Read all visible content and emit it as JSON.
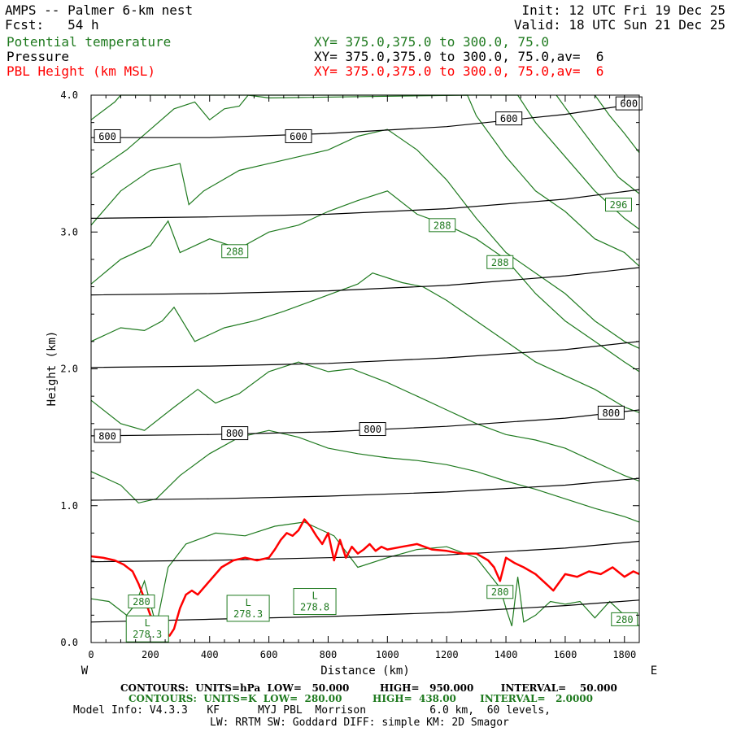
{
  "header": {
    "title": "AMPS -- Palmer 6-km nest",
    "init": "Init: 12 UTC Fri 19 Dec 25",
    "fcst": "Fcst:   54 h",
    "valid": "Valid: 18 UTC Sun 21 Dec 25",
    "fields": [
      {
        "name": "Potential temperature",
        "xy": "XY= 375.0,375.0 to 300.0, 75.0",
        "color": "#1f7a1f"
      },
      {
        "name": "Pressure",
        "xy": "XY= 375.0,375.0 to 300.0, 75.0,av=  6",
        "color": "#000000"
      },
      {
        "name": "PBL Height (km MSL)",
        "xy": "XY= 375.0,375.0 to 300.0, 75.0,av=  6",
        "color": "#ff0000"
      }
    ]
  },
  "chart_data": {
    "type": "line",
    "xlabel": "Distance (km)",
    "ylabel": "Height (km)",
    "xlim": [
      0,
      1850
    ],
    "ylim": [
      0,
      4.0
    ],
    "x_ticks": [
      "0",
      "200",
      "400",
      "600",
      "800",
      "1000",
      "1200",
      "1400",
      "1600",
      "1800"
    ],
    "y_ticks": [
      "0.0",
      "1.0",
      "2.0",
      "3.0",
      "4.0"
    ],
    "x_end_labels": {
      "left": "W",
      "right": "E"
    },
    "pressure_contours": [
      {
        "level": 950,
        "points": [
          [
            0,
            0.15
          ],
          [
            400,
            0.17
          ],
          [
            800,
            0.19
          ],
          [
            1200,
            0.22
          ],
          [
            1600,
            0.27
          ],
          [
            1850,
            0.31
          ]
        ]
      },
      {
        "level": 900,
        "points": [
          [
            0,
            0.59
          ],
          [
            400,
            0.6
          ],
          [
            800,
            0.62
          ],
          [
            1200,
            0.64
          ],
          [
            1600,
            0.69
          ],
          [
            1850,
            0.74
          ]
        ]
      },
      {
        "level": 850,
        "points": [
          [
            0,
            1.04
          ],
          [
            400,
            1.05
          ],
          [
            800,
            1.07
          ],
          [
            1200,
            1.1
          ],
          [
            1600,
            1.15
          ],
          [
            1850,
            1.2
          ]
        ]
      },
      {
        "level": 800,
        "points": [
          [
            0,
            1.51
          ],
          [
            400,
            1.52
          ],
          [
            800,
            1.54
          ],
          [
            1200,
            1.58
          ],
          [
            1600,
            1.64
          ],
          [
            1850,
            1.7
          ]
        ]
      },
      {
        "level": 750,
        "points": [
          [
            0,
            2.01
          ],
          [
            400,
            2.02
          ],
          [
            800,
            2.04
          ],
          [
            1200,
            2.08
          ],
          [
            1600,
            2.14
          ],
          [
            1850,
            2.2
          ]
        ]
      },
      {
        "level": 700,
        "points": [
          [
            0,
            2.54
          ],
          [
            400,
            2.55
          ],
          [
            800,
            2.57
          ],
          [
            1200,
            2.61
          ],
          [
            1600,
            2.68
          ],
          [
            1850,
            2.74
          ]
        ]
      },
      {
        "level": 650,
        "points": [
          [
            0,
            3.1
          ],
          [
            400,
            3.11
          ],
          [
            800,
            3.13
          ],
          [
            1200,
            3.17
          ],
          [
            1600,
            3.24
          ],
          [
            1850,
            3.31
          ]
        ]
      },
      {
        "level": 600,
        "points": [
          [
            0,
            3.69
          ],
          [
            400,
            3.69
          ],
          [
            800,
            3.72
          ],
          [
            1200,
            3.77
          ],
          [
            1600,
            3.86
          ],
          [
            1850,
            3.94
          ]
        ]
      }
    ],
    "pressure_labels": [
      {
        "text": "600",
        "x": 55,
        "y": 3.7
      },
      {
        "text": "600",
        "x": 700,
        "y": 3.7
      },
      {
        "text": "600",
        "x": 1410,
        "y": 3.83
      },
      {
        "text": "600",
        "x": 1815,
        "y": 3.94
      },
      {
        "text": "800",
        "x": 55,
        "y": 1.51
      },
      {
        "text": "800",
        "x": 485,
        "y": 1.53
      },
      {
        "text": "800",
        "x": 950,
        "y": 1.56
      },
      {
        "text": "800",
        "x": 1755,
        "y": 1.68
      }
    ],
    "theta_contours": [
      {
        "level": 280,
        "points": [
          [
            0,
            0.32
          ],
          [
            60,
            0.3
          ],
          [
            120,
            0.2
          ],
          [
            150,
            0.28
          ],
          [
            180,
            0.45
          ],
          [
            220,
            0.12
          ],
          [
            260,
            0.55
          ],
          [
            320,
            0.72
          ],
          [
            420,
            0.8
          ],
          [
            520,
            0.78
          ],
          [
            620,
            0.85
          ],
          [
            720,
            0.88
          ],
          [
            820,
            0.78
          ],
          [
            900,
            0.55
          ],
          [
            1000,
            0.62
          ],
          [
            1100,
            0.68
          ],
          [
            1200,
            0.7
          ],
          [
            1300,
            0.62
          ],
          [
            1380,
            0.4
          ],
          [
            1400,
            0.25
          ],
          [
            1420,
            0.12
          ],
          [
            1440,
            0.48
          ],
          [
            1460,
            0.15
          ],
          [
            1500,
            0.2
          ],
          [
            1550,
            0.3
          ],
          [
            1600,
            0.28
          ],
          [
            1650,
            0.3
          ],
          [
            1700,
            0.18
          ],
          [
            1750,
            0.3
          ],
          [
            1800,
            0.2
          ],
          [
            1850,
            0.12
          ]
        ]
      },
      {
        "level": 282,
        "points": [
          [
            0,
            1.25
          ],
          [
            100,
            1.15
          ],
          [
            160,
            1.02
          ],
          [
            220,
            1.05
          ],
          [
            300,
            1.22
          ],
          [
            400,
            1.38
          ],
          [
            500,
            1.5
          ],
          [
            600,
            1.55
          ],
          [
            700,
            1.5
          ],
          [
            800,
            1.42
          ],
          [
            900,
            1.38
          ],
          [
            1000,
            1.35
          ],
          [
            1100,
            1.33
          ],
          [
            1200,
            1.3
          ],
          [
            1300,
            1.25
          ],
          [
            1400,
            1.18
          ],
          [
            1500,
            1.12
          ],
          [
            1600,
            1.05
          ],
          [
            1700,
            0.98
          ],
          [
            1800,
            0.92
          ],
          [
            1850,
            0.88
          ]
        ]
      },
      {
        "level": 284,
        "points": [
          [
            0,
            1.77
          ],
          [
            100,
            1.6
          ],
          [
            180,
            1.55
          ],
          [
            280,
            1.72
          ],
          [
            360,
            1.85
          ],
          [
            420,
            1.75
          ],
          [
            500,
            1.82
          ],
          [
            600,
            1.98
          ],
          [
            700,
            2.05
          ],
          [
            800,
            1.98
          ],
          [
            880,
            2.0
          ],
          [
            1000,
            1.9
          ],
          [
            1100,
            1.8
          ],
          [
            1200,
            1.7
          ],
          [
            1300,
            1.6
          ],
          [
            1400,
            1.52
          ],
          [
            1500,
            1.48
          ],
          [
            1600,
            1.42
          ],
          [
            1700,
            1.32
          ],
          [
            1800,
            1.22
          ],
          [
            1850,
            1.18
          ]
        ]
      },
      {
        "level": 286,
        "points": [
          [
            0,
            2.2
          ],
          [
            100,
            2.3
          ],
          [
            180,
            2.28
          ],
          [
            240,
            2.35
          ],
          [
            280,
            2.45
          ],
          [
            350,
            2.2
          ],
          [
            450,
            2.3
          ],
          [
            550,
            2.35
          ],
          [
            650,
            2.42
          ],
          [
            750,
            2.5
          ],
          [
            900,
            2.62
          ],
          [
            950,
            2.7
          ],
          [
            1050,
            2.63
          ],
          [
            1120,
            2.6
          ],
          [
            1200,
            2.5
          ],
          [
            1300,
            2.35
          ],
          [
            1400,
            2.2
          ],
          [
            1500,
            2.05
          ],
          [
            1600,
            1.95
          ],
          [
            1700,
            1.85
          ],
          [
            1800,
            1.72
          ],
          [
            1850,
            1.68
          ]
        ]
      },
      {
        "level": 288,
        "points": [
          [
            0,
            2.62
          ],
          [
            100,
            2.8
          ],
          [
            200,
            2.9
          ],
          [
            260,
            3.08
          ],
          [
            300,
            2.85
          ],
          [
            400,
            2.95
          ],
          [
            500,
            2.88
          ],
          [
            600,
            3.0
          ],
          [
            700,
            3.05
          ],
          [
            800,
            3.15
          ],
          [
            900,
            3.23
          ],
          [
            1000,
            3.3
          ],
          [
            1100,
            3.13
          ],
          [
            1200,
            3.05
          ],
          [
            1300,
            2.95
          ],
          [
            1400,
            2.8
          ],
          [
            1500,
            2.55
          ],
          [
            1600,
            2.35
          ],
          [
            1700,
            2.2
          ],
          [
            1800,
            2.05
          ],
          [
            1850,
            1.98
          ]
        ]
      },
      {
        "level": 290,
        "points": [
          [
            0,
            3.05
          ],
          [
            100,
            3.3
          ],
          [
            200,
            3.45
          ],
          [
            300,
            3.5
          ],
          [
            330,
            3.2
          ],
          [
            380,
            3.3
          ],
          [
            420,
            3.35
          ],
          [
            500,
            3.45
          ],
          [
            600,
            3.5
          ],
          [
            700,
            3.55
          ],
          [
            800,
            3.6
          ],
          [
            900,
            3.7
          ],
          [
            1000,
            3.75
          ],
          [
            1100,
            3.6
          ],
          [
            1200,
            3.38
          ],
          [
            1300,
            3.1
          ],
          [
            1400,
            2.85
          ],
          [
            1500,
            2.7
          ],
          [
            1600,
            2.55
          ],
          [
            1700,
            2.35
          ],
          [
            1800,
            2.2
          ],
          [
            1850,
            2.15
          ]
        ]
      },
      {
        "level": 292,
        "points": [
          [
            0,
            3.42
          ],
          [
            120,
            3.6
          ],
          [
            200,
            3.75
          ],
          [
            280,
            3.9
          ],
          [
            350,
            3.95
          ],
          [
            400,
            3.82
          ],
          [
            450,
            3.9
          ],
          [
            500,
            3.92
          ],
          [
            530,
            4.0
          ],
          [
            600,
            3.98
          ],
          [
            1270,
            4.0
          ],
          [
            1300,
            3.85
          ],
          [
            1400,
            3.55
          ],
          [
            1500,
            3.3
          ],
          [
            1600,
            3.15
          ],
          [
            1700,
            2.95
          ],
          [
            1800,
            2.85
          ],
          [
            1850,
            2.75
          ]
        ]
      },
      {
        "level": 294,
        "points": [
          [
            0,
            3.82
          ],
          [
            80,
            3.95
          ],
          [
            100,
            4.0
          ],
          [
            1440,
            4.0
          ],
          [
            1500,
            3.8
          ],
          [
            1600,
            3.55
          ],
          [
            1700,
            3.3
          ],
          [
            1800,
            3.1
          ],
          [
            1850,
            3.02
          ]
        ]
      },
      {
        "level": 296,
        "points": [
          [
            1570,
            4.0
          ],
          [
            1620,
            3.85
          ],
          [
            1700,
            3.62
          ],
          [
            1780,
            3.4
          ],
          [
            1850,
            3.28
          ]
        ]
      },
      {
        "level": 298,
        "points": [
          [
            1700,
            4.0
          ],
          [
            1750,
            3.85
          ],
          [
            1800,
            3.72
          ],
          [
            1850,
            3.58
          ]
        ]
      }
    ],
    "theta_labels": [
      {
        "text": "280",
        "x": 170,
        "y": 0.3
      },
      {
        "text": "280",
        "x": 1380,
        "y": 0.37
      },
      {
        "text": "280",
        "x": 1800,
        "y": 0.17
      },
      {
        "text": "288",
        "x": 485,
        "y": 2.86
      },
      {
        "text": "288",
        "x": 1185,
        "y": 3.05
      },
      {
        "text": "288",
        "x": 1380,
        "y": 2.78
      },
      {
        "text": "296",
        "x": 1780,
        "y": 3.2
      }
    ],
    "low_markers": [
      {
        "letter": "L",
        "value": "278.3",
        "x": 190,
        "y": 0.1
      },
      {
        "letter": "L",
        "value": "278.3",
        "x": 530,
        "y": 0.25
      },
      {
        "letter": "L",
        "value": "278.8",
        "x": 755,
        "y": 0.3
      }
    ],
    "pbl_height": {
      "x": [
        0,
        40,
        80,
        110,
        140,
        160,
        180,
        200,
        215,
        230,
        250,
        265,
        280,
        300,
        320,
        340,
        360,
        400,
        440,
        480,
        520,
        560,
        600,
        620,
        640,
        660,
        680,
        700,
        720,
        740,
        760,
        780,
        800,
        820,
        840,
        860,
        880,
        900,
        920,
        940,
        960,
        980,
        1000,
        1050,
        1100,
        1150,
        1200,
        1250,
        1300,
        1340,
        1360,
        1380,
        1400,
        1430,
        1460,
        1500,
        1540,
        1560,
        1600,
        1640,
        1680,
        1720,
        1760,
        1800,
        1830,
        1850
      ],
      "y": [
        0.63,
        0.62,
        0.6,
        0.57,
        0.52,
        0.43,
        0.32,
        0.2,
        0.15,
        0.1,
        0.07,
        0.05,
        0.1,
        0.25,
        0.35,
        0.38,
        0.35,
        0.45,
        0.55,
        0.6,
        0.62,
        0.6,
        0.62,
        0.68,
        0.75,
        0.8,
        0.78,
        0.82,
        0.9,
        0.85,
        0.78,
        0.72,
        0.8,
        0.6,
        0.75,
        0.62,
        0.7,
        0.65,
        0.68,
        0.72,
        0.67,
        0.7,
        0.68,
        0.7,
        0.72,
        0.68,
        0.67,
        0.65,
        0.65,
        0.6,
        0.55,
        0.45,
        0.62,
        0.58,
        0.55,
        0.5,
        0.42,
        0.38,
        0.5,
        0.48,
        0.52,
        0.5,
        0.55,
        0.48,
        0.52,
        0.5
      ]
    }
  },
  "footer": {
    "pressure_contours": "CONTOURS:  UNITS=hPa  LOW=   50.000         HIGH=   950.000        INTERVAL=    50.000",
    "theta_contours": "CONTOURS:  UNITS=K  LOW=  280.00         HIGH=  438.00       INTERVAL=   2.0000",
    "model_info": "Model Info: V4.3.3   KF      MYJ PBL  Morrison          6.0 km,  60 levels,",
    "physics": "LW: RRTM SW: Goddard DIFF: simple KM: 2D Smagor"
  }
}
